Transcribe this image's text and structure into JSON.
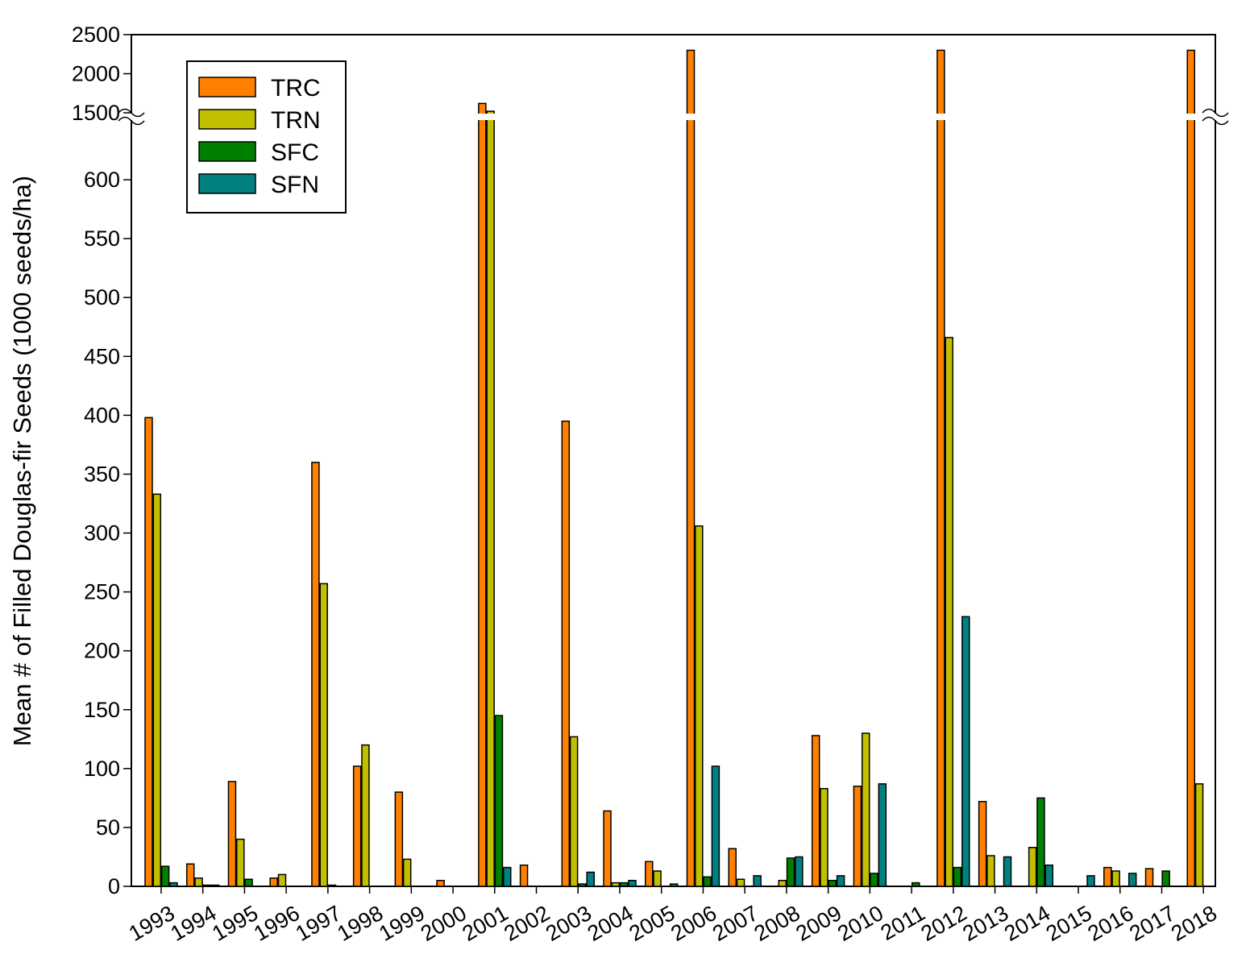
{
  "chart_data": {
    "type": "bar",
    "title": "",
    "xlabel": "",
    "ylabel": "Mean # of Filled Douglas-fir Seeds (1000 seeds/ha)",
    "y_axis_break": {
      "lower_range": [
        0,
        650
      ],
      "upper_range": [
        1500,
        2500
      ]
    },
    "y_ticks_lower": [
      0,
      50,
      100,
      150,
      200,
      250,
      300,
      350,
      400,
      450,
      500,
      550,
      600
    ],
    "y_ticks_upper": [
      1500,
      2000,
      2500
    ],
    "grid": false,
    "legend_position": "top-left",
    "categories": [
      "1993",
      "1994",
      "1995",
      "1996",
      "1997",
      "1998",
      "1999",
      "2000",
      "2001",
      "2002",
      "2003",
      "2004",
      "2005",
      "2006",
      "2007",
      "2008",
      "2009",
      "2010",
      "2011",
      "2012",
      "2013",
      "2014",
      "2015",
      "2016",
      "2017",
      "2018"
    ],
    "series": [
      {
        "name": "TRC",
        "color": "#ff8000",
        "values": [
          398,
          19,
          89,
          7,
          360,
          102,
          80,
          5,
          1620,
          18,
          395,
          64,
          21,
          2300,
          32,
          0,
          128,
          85,
          0,
          2300,
          72,
          0,
          0,
          16,
          15,
          2300
        ]
      },
      {
        "name": "TRN",
        "color": "#c0c000",
        "values": [
          333,
          7,
          40,
          10,
          257,
          120,
          23,
          0,
          1520,
          0,
          127,
          3,
          13,
          306,
          6,
          5,
          83,
          130,
          0,
          466,
          26,
          33,
          0,
          13,
          0,
          87
        ]
      },
      {
        "name": "SFC",
        "color": "#008000",
        "values": [
          17,
          1,
          6,
          0,
          1,
          0,
          0,
          0,
          145,
          0,
          2,
          3,
          0,
          8,
          0,
          24,
          5,
          11,
          3,
          16,
          0,
          75,
          0,
          0,
          13,
          0
        ]
      },
      {
        "name": "SFN",
        "color": "#008080",
        "values": [
          3,
          1,
          0,
          0,
          0,
          0,
          0,
          0,
          16,
          0,
          12,
          5,
          2,
          102,
          9,
          25,
          9,
          87,
          0,
          229,
          25,
          18,
          9,
          11,
          0,
          0
        ]
      }
    ]
  }
}
